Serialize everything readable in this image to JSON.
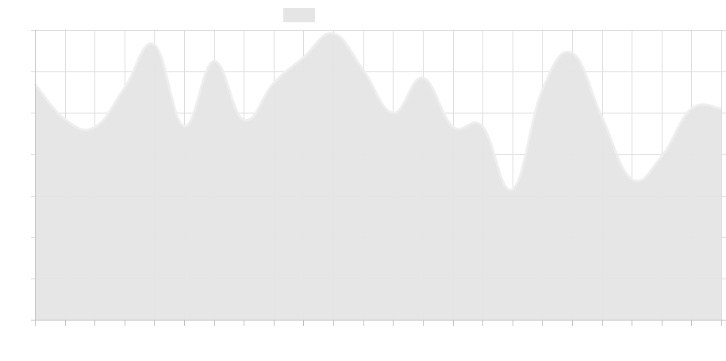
{
  "chart_data": {
    "type": "area",
    "title": "",
    "xlabel": "",
    "ylabel": "",
    "x": [
      0,
      1,
      2,
      3,
      4,
      5,
      6,
      7,
      8,
      9,
      10,
      11,
      12,
      13,
      14,
      15,
      16,
      17,
      18,
      19,
      20,
      21,
      22,
      23
    ],
    "series": [
      {
        "name": "",
        "values": [
          57,
          48.5,
          46.5,
          56,
          66.5,
          46.8,
          62.5,
          48.3,
          57.2,
          63.4,
          69.2,
          60.4,
          50,
          58.5,
          46.7,
          46.7,
          31.5,
          55.5,
          64.5,
          49,
          34,
          39.5,
          51,
          51
        ],
        "color": "#e5e5e5",
        "line_color": "#eeeeee"
      }
    ],
    "ylim": [
      0,
      70
    ],
    "grid": true,
    "legend": "top-center"
  }
}
